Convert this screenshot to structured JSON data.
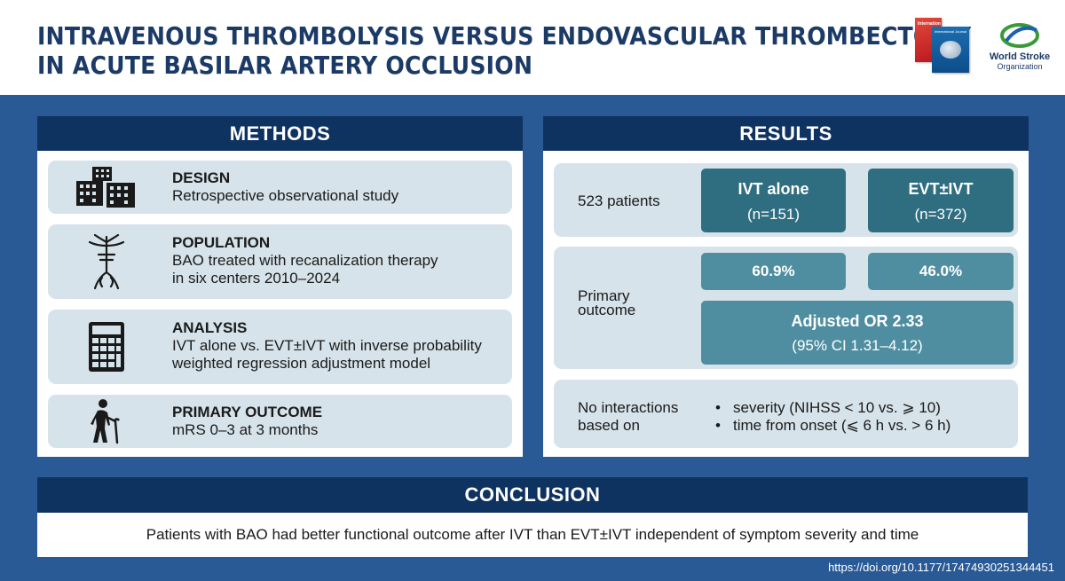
{
  "title": {
    "line1": "INTRAVENOUS THROMBOLYSIS VERSUS ENDOVASCULAR THROMBECTOMY",
    "line2": "IN ACUTE BASILAR ARTERY OCCLUSION"
  },
  "logos": {
    "journal_name": "International Journal of Stroke",
    "org_name": "World Stroke",
    "org_sub": "Organization"
  },
  "methods": {
    "header": "METHODS",
    "items": [
      {
        "icon": "hospital-buildings-icon",
        "head": "DESIGN",
        "body": [
          "Retrospective observational study"
        ]
      },
      {
        "icon": "artery-icon",
        "head": "POPULATION",
        "body": [
          "BAO treated with recanalization therapy",
          "in six centers 2010–2024"
        ]
      },
      {
        "icon": "calculator-icon",
        "head": "ANALYSIS",
        "body": [
          "IVT alone vs. EVT±IVT with inverse probability",
          "weighted regression adjustment model"
        ]
      },
      {
        "icon": "elderly-person-cane-icon",
        "head": "PRIMARY OUTCOME",
        "body": [
          "mRS 0–3 at 3 months"
        ]
      }
    ]
  },
  "results": {
    "header": "RESULTS",
    "patients": "523 patients",
    "groups": [
      {
        "name": "IVT alone",
        "n": "(n=151)"
      },
      {
        "name": "EVT±IVT",
        "n": "(n=372)"
      }
    ],
    "primary_label": [
      "Primary",
      "outcome"
    ],
    "rates": [
      "60.9%",
      "46.0%"
    ],
    "odds_ratio": "Adjusted OR 2.33",
    "ci": "(95% CI 1.31–4.12)",
    "interaction_label": [
      "No interactions",
      "based on"
    ],
    "interactions": [
      "severity (NIHSS < 10 vs. ⩾ 10)",
      "time from onset (⩽ 6 h vs. > 6 h)"
    ]
  },
  "conclusion": {
    "header": "CONCLUSION",
    "text": "Patients with BAO had better functional outcome after IVT than EVT±IVT independent of symptom severity and time"
  },
  "doi": "https://doi.org/10.1177/17474930251344451",
  "colors": {
    "title": "#1b3a66",
    "header_bg": "#0e3361",
    "panel_bg": "#2a5a96",
    "card_bg": "#d6e3ea",
    "dark_box": "#2f6d80",
    "mid_box": "#4f8ea1"
  }
}
